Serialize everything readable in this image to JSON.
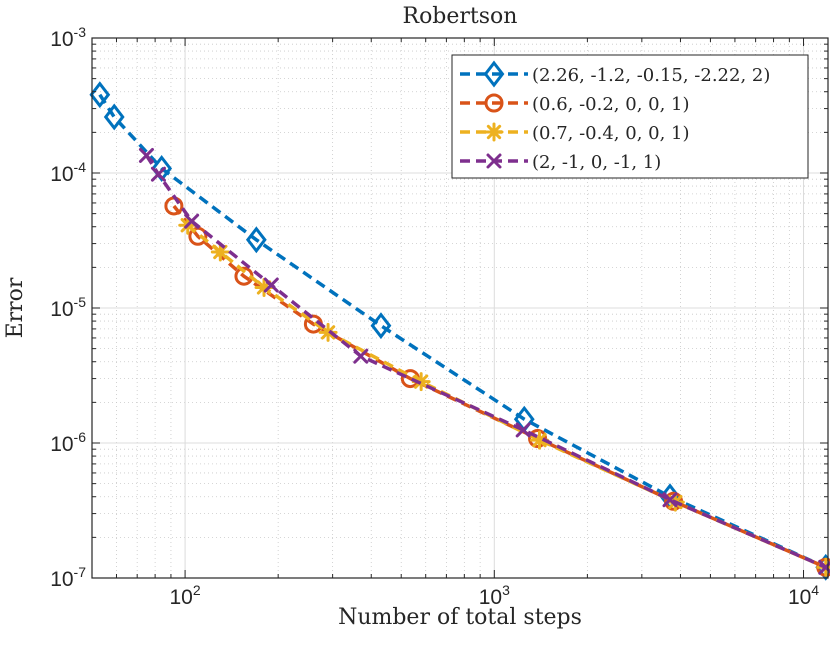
{
  "chart_data": {
    "type": "line",
    "title": "Robertson",
    "xlabel": "Number of total steps",
    "ylabel": "Error",
    "xscale": "log",
    "yscale": "log",
    "xlim": [
      50,
      12000
    ],
    "ylim": [
      1e-07,
      0.001
    ],
    "grid": true,
    "legend_position": "top-right",
    "x_ticks": [
      {
        "value": 100,
        "base": "10",
        "exp": "2"
      },
      {
        "value": 1000,
        "base": "10",
        "exp": "3"
      },
      {
        "value": 10000,
        "base": "10",
        "exp": "4"
      }
    ],
    "y_ticks": [
      {
        "value": 1e-07,
        "base": "10",
        "exp": "-7"
      },
      {
        "value": 1e-06,
        "base": "10",
        "exp": "-6"
      },
      {
        "value": 1e-05,
        "base": "10",
        "exp": "-5"
      },
      {
        "value": 0.0001,
        "base": "10",
        "exp": "-4"
      },
      {
        "value": 0.001,
        "base": "10",
        "exp": "-3"
      }
    ],
    "series": [
      {
        "name": "(2.26, -1.2, -0.15, -2.22, 2)",
        "color": "#0072BD",
        "marker": "diamond",
        "x": [
          53,
          59,
          84,
          170,
          430,
          1250,
          3700,
          11800
        ],
        "y": [
          0.00038,
          0.00026,
          0.000108,
          3.2e-05,
          7.4e-06,
          1.5e-06,
          4e-07,
          1.2e-07
        ]
      },
      {
        "name": "(0.6, -0.2, 0, 0, 1)",
        "color": "#D95319",
        "marker": "circle",
        "x": [
          92,
          110,
          155,
          260,
          535,
          1380,
          3800,
          11800
        ],
        "y": [
          5.7e-05,
          3.4e-05,
          1.72e-05,
          7.6e-06,
          3e-06,
          1.08e-06,
          3.7e-07,
          1.2e-07
        ]
      },
      {
        "name": "(0.7, -0.4, 0, 0, 1)",
        "color": "#EDB120",
        "marker": "asterisk",
        "x": [
          102,
          130,
          180,
          290,
          580,
          1400,
          3850,
          11800
        ],
        "y": [
          4.1e-05,
          2.6e-05,
          1.42e-05,
          6.6e-06,
          2.85e-06,
          1.05e-06,
          3.65e-07,
          1.2e-07
        ]
      },
      {
        "name": "(2, -1, 0, -1, 1)",
        "color": "#7E2F8E",
        "marker": "x",
        "x": [
          75,
          82,
          105,
          190,
          370,
          1240,
          3700,
          11800
        ],
        "y": [
          0.000135,
          9.8e-05,
          4.4e-05,
          1.48e-05,
          4.4e-06,
          1.25e-06,
          3.8e-07,
          1.2e-07
        ]
      }
    ]
  }
}
